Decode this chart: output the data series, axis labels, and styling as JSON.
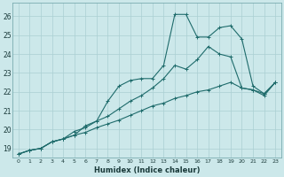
{
  "xlabel": "Humidex (Indice chaleur)",
  "bg_color": "#cce8ea",
  "grid_color": "#aacfd2",
  "line_color": "#1e6b6b",
  "xlim": [
    -0.5,
    23.5
  ],
  "ylim": [
    18.5,
    26.7
  ],
  "xticks": [
    0,
    1,
    2,
    3,
    4,
    5,
    6,
    7,
    8,
    9,
    10,
    11,
    12,
    13,
    14,
    15,
    16,
    17,
    18,
    19,
    20,
    21,
    22,
    23
  ],
  "yticks": [
    19,
    20,
    21,
    22,
    23,
    24,
    25,
    26
  ],
  "line1_x": [
    0,
    1,
    2,
    3,
    4,
    5,
    6,
    7,
    8,
    9,
    10,
    11,
    12,
    13,
    14,
    15,
    16,
    17,
    18,
    19,
    20,
    21,
    22,
    23
  ],
  "line1_y": [
    18.7,
    18.9,
    19.0,
    19.35,
    19.5,
    19.7,
    20.2,
    20.45,
    21.5,
    22.3,
    22.6,
    22.7,
    22.7,
    23.4,
    26.1,
    26.1,
    24.9,
    24.9,
    25.4,
    25.5,
    24.8,
    22.3,
    21.9,
    22.5
  ],
  "line2_x": [
    0,
    1,
    2,
    3,
    4,
    5,
    6,
    7,
    8,
    9,
    10,
    11,
    12,
    13,
    14,
    15,
    16,
    17,
    18,
    19,
    20,
    21,
    22,
    23
  ],
  "line2_y": [
    18.7,
    18.9,
    19.0,
    19.35,
    19.5,
    19.9,
    20.1,
    20.45,
    20.7,
    21.1,
    21.5,
    21.8,
    22.2,
    22.7,
    23.4,
    23.2,
    23.7,
    24.4,
    24.0,
    23.85,
    22.2,
    22.1,
    21.9,
    22.5
  ],
  "line3_x": [
    0,
    1,
    2,
    3,
    4,
    5,
    6,
    7,
    8,
    9,
    10,
    11,
    12,
    13,
    14,
    15,
    16,
    17,
    18,
    19,
    20,
    21,
    22,
    23
  ],
  "line3_y": [
    18.7,
    18.9,
    19.0,
    19.35,
    19.5,
    19.7,
    19.85,
    20.1,
    20.3,
    20.5,
    20.75,
    21.0,
    21.25,
    21.4,
    21.65,
    21.8,
    22.0,
    22.1,
    22.3,
    22.5,
    22.2,
    22.1,
    21.8,
    22.5
  ]
}
